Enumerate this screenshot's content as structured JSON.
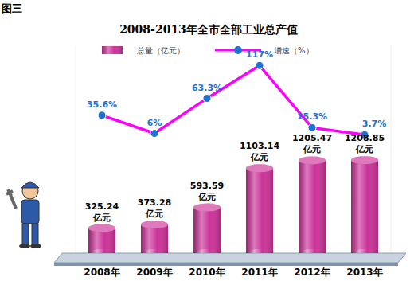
{
  "chart_data": {
    "type": "bar",
    "title": "2008-2013年全市全部工业总产值",
    "annotations": [
      "图三"
    ],
    "categories": [
      "2008年",
      "2009年",
      "2010年",
      "2011年",
      "2012年",
      "2013年"
    ],
    "series": [
      {
        "name": "总量（亿元）",
        "type": "bar",
        "color": "#cc3399",
        "values": [
          325.24,
          373.28,
          593.59,
          1103.14,
          1205.47,
          1208.85
        ],
        "value_labels": [
          "325.24亿元",
          "373.28亿元",
          "593.59亿元",
          "1103.14亿元",
          "1205.47亿元",
          "1208.85亿元"
        ]
      },
      {
        "name": "增速（%）",
        "type": "line",
        "color": "#ff00ff",
        "marker": "circle",
        "axis": "y2",
        "values": [
          35.6,
          6,
          63.3,
          117,
          15.3,
          3.7
        ],
        "value_labels": [
          "35.6%",
          "6%",
          "63.3%",
          "117%",
          "15.3%",
          "3.7%"
        ]
      }
    ],
    "ylim": [
      0,
      2700
    ],
    "y2lim": [
      -190,
      150
    ],
    "data_labels": true,
    "tick_labels": "x",
    "legend": "top"
  }
}
